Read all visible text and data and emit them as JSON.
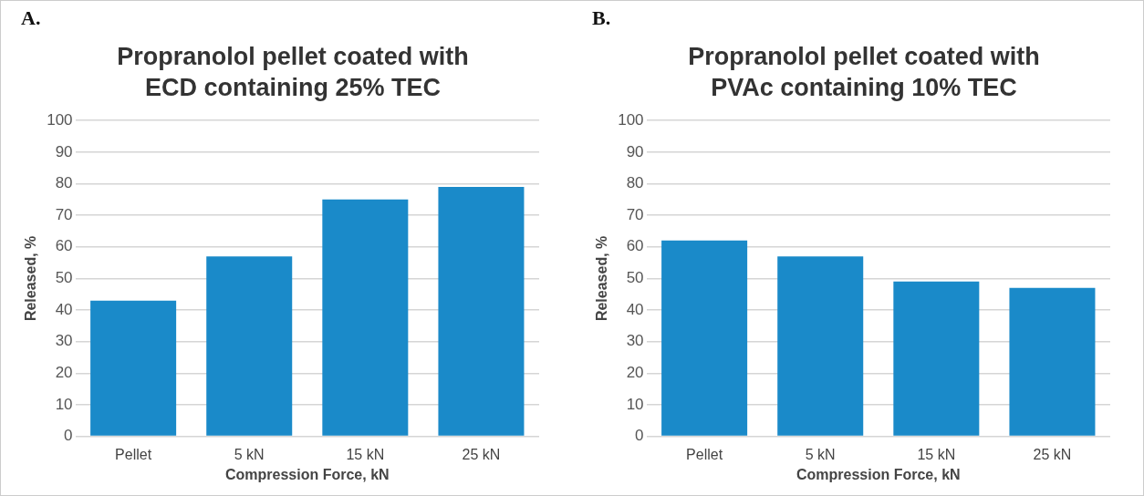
{
  "chart_data": [
    {
      "type": "bar",
      "title": "Propranolol pellet coated with ECD containing 25% TEC",
      "annotations": [
        "A."
      ],
      "xlabel": "Compression Force, kN",
      "ylabel": "Released, %",
      "categories": [
        "Pellet",
        "5 kN",
        "15 kN",
        "25 kN"
      ],
      "values": [
        43,
        57,
        75,
        79
      ],
      "color": "#1a8ac9",
      "ylim": [
        0,
        100
      ],
      "yticks": [
        0,
        10,
        20,
        30,
        40,
        50,
        60,
        70,
        80,
        90,
        100
      ],
      "grid": "y",
      "legend": false
    },
    {
      "type": "bar",
      "title": "Propranolol pellet coated with PVAc containing 10% TEC",
      "annotations": [
        "B."
      ],
      "xlabel": "Compression Force, kN",
      "ylabel": "Released, %",
      "categories": [
        "Pellet",
        "5 kN",
        "15 kN",
        "25 kN"
      ],
      "values": [
        62,
        57,
        49,
        47
      ],
      "color": "#1a8ac9",
      "ylim": [
        0,
        100
      ],
      "yticks": [
        0,
        10,
        20,
        30,
        40,
        50,
        60,
        70,
        80,
        90,
        100
      ],
      "grid": "y",
      "legend": false
    }
  ]
}
